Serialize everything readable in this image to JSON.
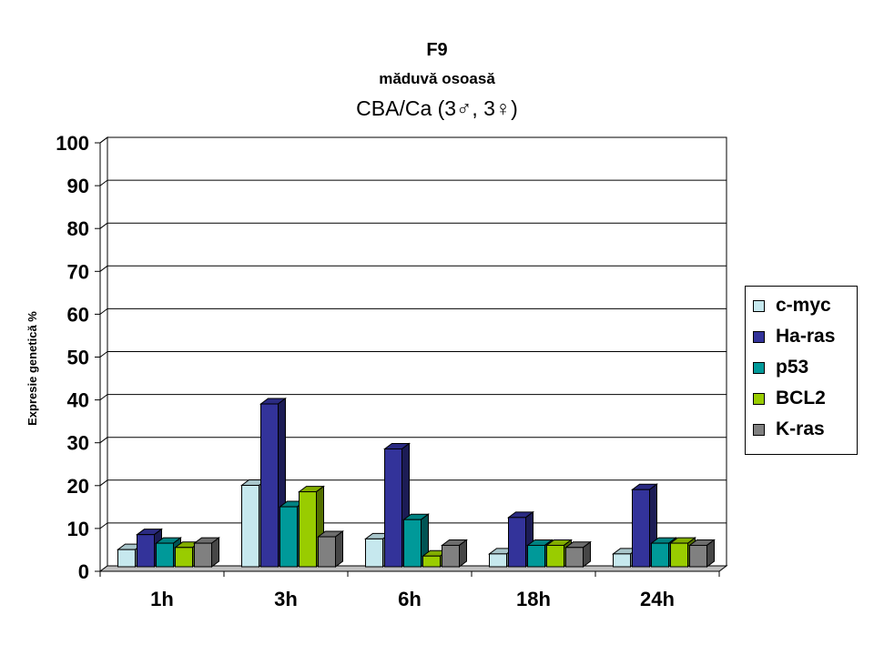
{
  "titles": {
    "line1": "F9",
    "line2": "măduvă osoasă",
    "line3": "CBA/Ca (3♂, 3♀)"
  },
  "chart_data": {
    "type": "bar",
    "style": "3d-clustered",
    "categories": [
      "1h",
      "3h",
      "6h",
      "18h",
      "24h"
    ],
    "ylabel": "Expresie genetică %",
    "xlabel": "",
    "ylim": [
      0,
      100
    ],
    "yticks": [
      0,
      10,
      20,
      30,
      40,
      50,
      60,
      70,
      80,
      90,
      100
    ],
    "grid": true,
    "legend_position": "right",
    "series": [
      {
        "name": "c-myc",
        "color": "#c6e8ee",
        "values": [
          4,
          19,
          6.5,
          3,
          3
        ]
      },
      {
        "name": "Ha-ras",
        "color": "#33339a",
        "values": [
          7.5,
          38,
          27.5,
          11.5,
          18
        ]
      },
      {
        "name": "p53",
        "color": "#009999",
        "values": [
          5.5,
          14,
          11,
          5,
          5.5
        ]
      },
      {
        "name": "BCL2",
        "color": "#99cc00",
        "values": [
          4.5,
          17.5,
          2.5,
          5,
          5.5
        ]
      },
      {
        "name": "K-ras",
        "color": "#808080",
        "values": [
          5.5,
          7,
          5,
          4.5,
          5
        ]
      }
    ]
  }
}
